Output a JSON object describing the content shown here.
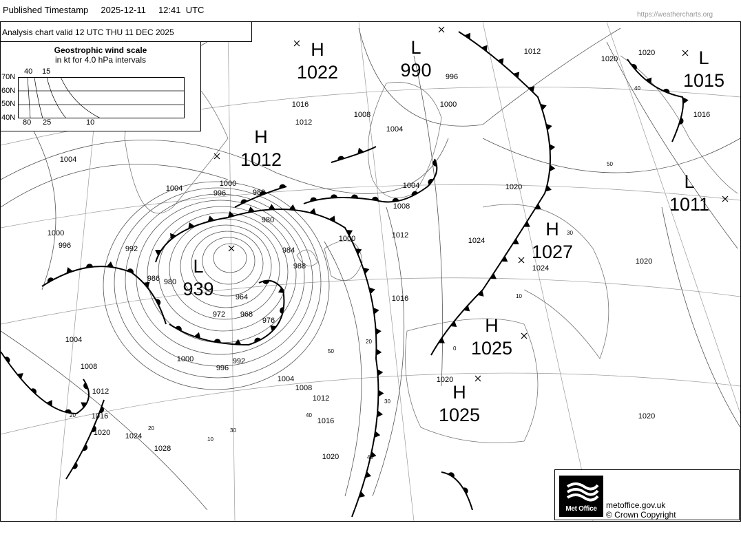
{
  "header": {
    "label": "Published Timestamp",
    "date": "2025-12-11",
    "time": "12:41  UTC",
    "source": "https://weathercharts.org"
  },
  "chart": {
    "valid_text": "Analysis chart  valid 12 UTC THU 11  DEC 2025",
    "wind_scale": {
      "title": "Geostrophic wind scale",
      "subtitle": "in kt for 4.0 hPa intervals",
      "lat_labels": [
        "70N",
        "60N",
        "50N",
        "40N"
      ],
      "top_labels": [
        "40",
        "15"
      ],
      "bottom_labels": [
        "80",
        "25",
        "10"
      ]
    },
    "pressure_centres": [
      {
        "type": "H",
        "value": "1022"
      },
      {
        "type": "L",
        "value": "990"
      },
      {
        "type": "H",
        "value": "1012"
      },
      {
        "type": "L",
        "value": "939"
      },
      {
        "type": "H",
        "value": "1027"
      },
      {
        "type": "H",
        "value": "1025"
      },
      {
        "type": "H",
        "value": "1025"
      },
      {
        "type": "L",
        "value": "1015"
      },
      {
        "type": "L",
        "value": "1011"
      }
    ],
    "isobar_labels": [
      "1016",
      "1012",
      "1008",
      "1004",
      "1000",
      "996",
      "1012",
      "1020",
      "1020",
      "1016",
      "1004",
      "1004",
      "1000",
      "996",
      "992",
      "1000",
      "996",
      "988",
      "980",
      "984",
      "988",
      "1000",
      "1012",
      "1004",
      "1008",
      "1020",
      "1024",
      "1016",
      "1024",
      "1020",
      "968",
      "976",
      "972",
      "964",
      "986",
      "980",
      "1000",
      "996",
      "992",
      "1004",
      "1008",
      "1012",
      "1016",
      "1020",
      "1004",
      "1008",
      "1012",
      "1016",
      "1020",
      "1024",
      "1028",
      "1020",
      "1020"
    ],
    "lat_labels": [
      "50",
      "40",
      "30",
      "20",
      "10",
      "40",
      "30",
      "20",
      "10",
      "0",
      "50",
      "40",
      "30",
      "20"
    ],
    "front_colors": {
      "line": "#000000"
    }
  },
  "footer": {
    "logo_text": "Met Office",
    "site": "metoffice.gov.uk",
    "copyright": "© Crown Copyright"
  }
}
